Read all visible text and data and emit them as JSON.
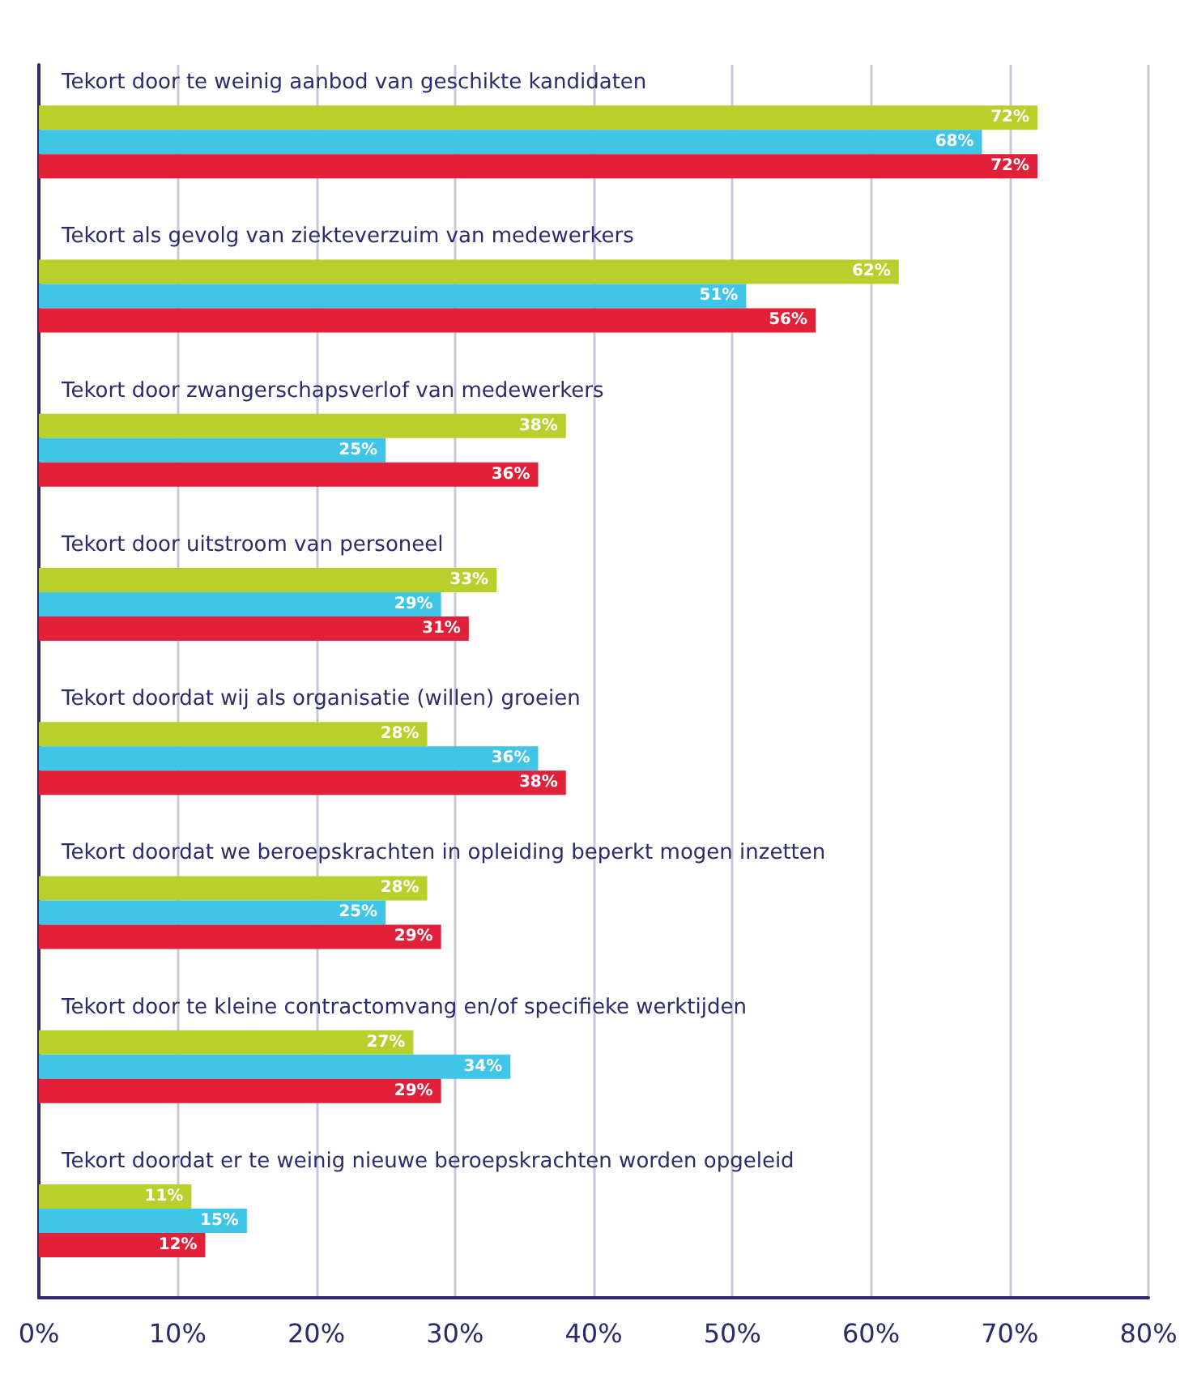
{
  "chart_data": {
    "type": "bar",
    "orientation": "horizontal",
    "categories": [
      "Tekort door te weinig aanbod van geschikte kandidaten",
      "Tekort als gevolg van ziekteverzuim van medewerkers",
      "Tekort door zwangerschapsverlof van medewerkers",
      "Tekort door uitstroom van personeel",
      "Tekort doordat wij als organisatie (willen) groeien",
      "Tekort doordat we beroepskrachten in opleiding beperkt mogen inzetten",
      "Tekort door te kleine contractomvang en/of specifieke werktijden",
      "Tekort doordat er te weinig nieuwe beroepskrachten worden opgeleid"
    ],
    "series": [
      {
        "color": "#b8cf2c",
        "values": [
          72,
          62,
          38,
          33,
          28,
          28,
          27,
          11
        ],
        "value_labels": [
          "72%",
          "62%",
          "38%",
          "33%",
          "28%",
          "28%",
          "27%",
          "11%"
        ]
      },
      {
        "color": "#3ec5e8",
        "values": [
          68,
          51,
          25,
          29,
          36,
          25,
          34,
          15
        ],
        "value_labels": [
          "68%",
          "51%",
          "25%",
          "29%",
          "36%",
          "25%",
          "34%",
          "15%"
        ]
      },
      {
        "color": "#e2203a",
        "values": [
          72,
          56,
          36,
          31,
          38,
          29,
          29,
          12
        ],
        "value_labels": [
          "72%",
          "56%",
          "36%",
          "31%",
          "38%",
          "29%",
          "29%",
          "12%"
        ]
      }
    ],
    "xlim": [
      0,
      80
    ],
    "xticks": [
      {
        "value": 0,
        "label": "0%"
      },
      {
        "value": 10,
        "label": "10%"
      },
      {
        "value": 20,
        "label": "20%"
      },
      {
        "value": 30,
        "label": "30%"
      },
      {
        "value": 40,
        "label": "40%"
      },
      {
        "value": 50,
        "label": "50%"
      },
      {
        "value": 60,
        "label": "60%"
      },
      {
        "value": 70,
        "label": "70%"
      },
      {
        "value": 80,
        "label": "80%"
      }
    ],
    "grid": "x"
  }
}
